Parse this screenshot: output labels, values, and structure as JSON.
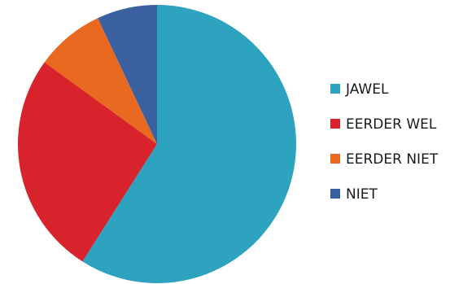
{
  "chart_data": {
    "type": "pie",
    "title": "",
    "slices": [
      {
        "label": "JAWEL",
        "value": 59,
        "color": "#2ea3bf"
      },
      {
        "label": "EERDER WEL",
        "value": 26,
        "color": "#d8222c"
      },
      {
        "label": "EERDER NIET",
        "value": 8,
        "color": "#e8691f"
      },
      {
        "label": "NIET",
        "value": 7,
        "color": "#3a60a0"
      }
    ],
    "start_angle": "12 o'clock",
    "direction": "clockwise",
    "legend": {
      "position": "right"
    }
  }
}
